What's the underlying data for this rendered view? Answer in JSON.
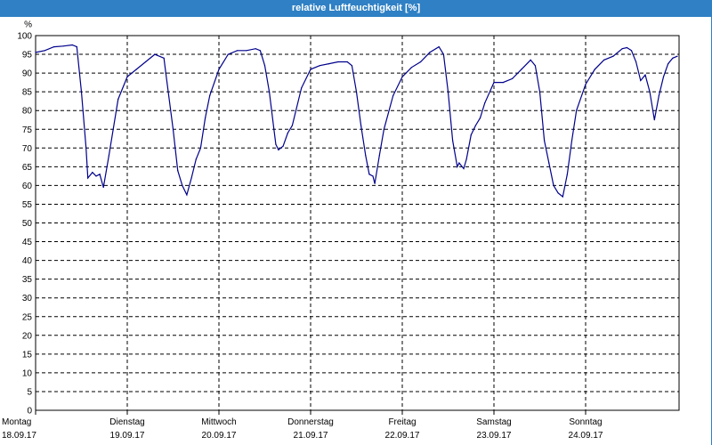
{
  "window": {
    "title": "relative Luftfeuchtigkeit [%]"
  },
  "colors": {
    "title_bar": "#2f80c4",
    "title_text": "#ffffff",
    "series": "#00008b",
    "grid": "#000000"
  },
  "chart_data": {
    "type": "line",
    "title": "relative Luftfeuchtigkeit [%]",
    "ylabel": "%",
    "xlabel": "",
    "ylim": [
      0,
      100
    ],
    "yticks": [
      0,
      5,
      10,
      15,
      20,
      25,
      30,
      35,
      40,
      45,
      50,
      55,
      60,
      65,
      70,
      75,
      80,
      85,
      90,
      95,
      100
    ],
    "grid": true,
    "legend": "none",
    "xlim_days": [
      0,
      7
    ],
    "x_ticks": [
      {
        "day": "Montag",
        "date": "18.09.17"
      },
      {
        "day": "Dienstag",
        "date": "19.09.17"
      },
      {
        "day": "Mittwoch",
        "date": "20.09.17"
      },
      {
        "day": "Donnerstag",
        "date": "21.09.17"
      },
      {
        "day": "Freitag",
        "date": "22.09.17"
      },
      {
        "day": "Samstag",
        "date": "23.09.17"
      },
      {
        "day": "Sonntag",
        "date": "24.09.17"
      }
    ],
    "series": [
      {
        "x_days": [
          0.0,
          0.1,
          0.2,
          0.3,
          0.4,
          0.45,
          0.5,
          0.55,
          0.57,
          0.62,
          0.66,
          0.7,
          0.74,
          0.8,
          0.9,
          1.0,
          1.1,
          1.2,
          1.3,
          1.4,
          1.42,
          1.5,
          1.55,
          1.6,
          1.65,
          1.7,
          1.75,
          1.8,
          1.85,
          1.9,
          2.0,
          2.1,
          2.2,
          2.3,
          2.4,
          2.45,
          2.5,
          2.55,
          2.6,
          2.62,
          2.65,
          2.7,
          2.75,
          2.8,
          2.9,
          3.0,
          3.1,
          3.2,
          3.3,
          3.4,
          3.45,
          3.5,
          3.55,
          3.6,
          3.64,
          3.68,
          3.7,
          3.75,
          3.8,
          3.9,
          4.0,
          4.1,
          4.2,
          4.3,
          4.4,
          4.45,
          4.5,
          4.55,
          4.6,
          4.62,
          4.67,
          4.7,
          4.75,
          4.8,
          4.85,
          4.9,
          5.0,
          5.1,
          5.2,
          5.3,
          5.4,
          5.45,
          5.5,
          5.55,
          5.6,
          5.65,
          5.7,
          5.75,
          5.8,
          5.85,
          5.9,
          6.0,
          6.1,
          6.2,
          6.3,
          6.4,
          6.45,
          6.5,
          6.55,
          6.6,
          6.65,
          6.7,
          6.75,
          6.8,
          6.85,
          6.9,
          6.95,
          7.0
        ],
        "y": [
          95.5,
          96.0,
          97.0,
          97.2,
          97.5,
          97.0,
          85.0,
          70.0,
          62.0,
          63.5,
          62.5,
          63.0,
          59.5,
          68.0,
          83.0,
          89.0,
          91.0,
          93.0,
          95.0,
          94.0,
          90.0,
          75.0,
          64.0,
          60.0,
          57.5,
          62.0,
          67.0,
          70.0,
          78.0,
          84.0,
          91.0,
          95.0,
          96.0,
          96.0,
          96.5,
          96.0,
          92.0,
          85.0,
          75.0,
          71.0,
          69.5,
          70.5,
          74.0,
          76.0,
          86.0,
          91.0,
          92.0,
          92.5,
          93.0,
          93.0,
          92.0,
          85.0,
          76.0,
          68.0,
          63.0,
          62.5,
          60.5,
          68.0,
          75.0,
          84.0,
          89.0,
          91.5,
          93.0,
          95.5,
          97.0,
          95.0,
          85.0,
          72.0,
          65.0,
          66.0,
          64.5,
          67.0,
          73.5,
          76.0,
          78.0,
          82.0,
          87.5,
          87.5,
          88.5,
          91.0,
          93.5,
          92.0,
          85.0,
          72.0,
          66.0,
          60.0,
          58.0,
          57.0,
          63.0,
          72.0,
          80.0,
          87.0,
          91.0,
          93.5,
          94.5,
          96.5,
          96.8,
          96.0,
          93.0,
          88.0,
          89.5,
          85.0,
          77.5,
          84.0,
          89.0,
          92.5,
          94.0,
          94.5
        ]
      }
    ]
  }
}
